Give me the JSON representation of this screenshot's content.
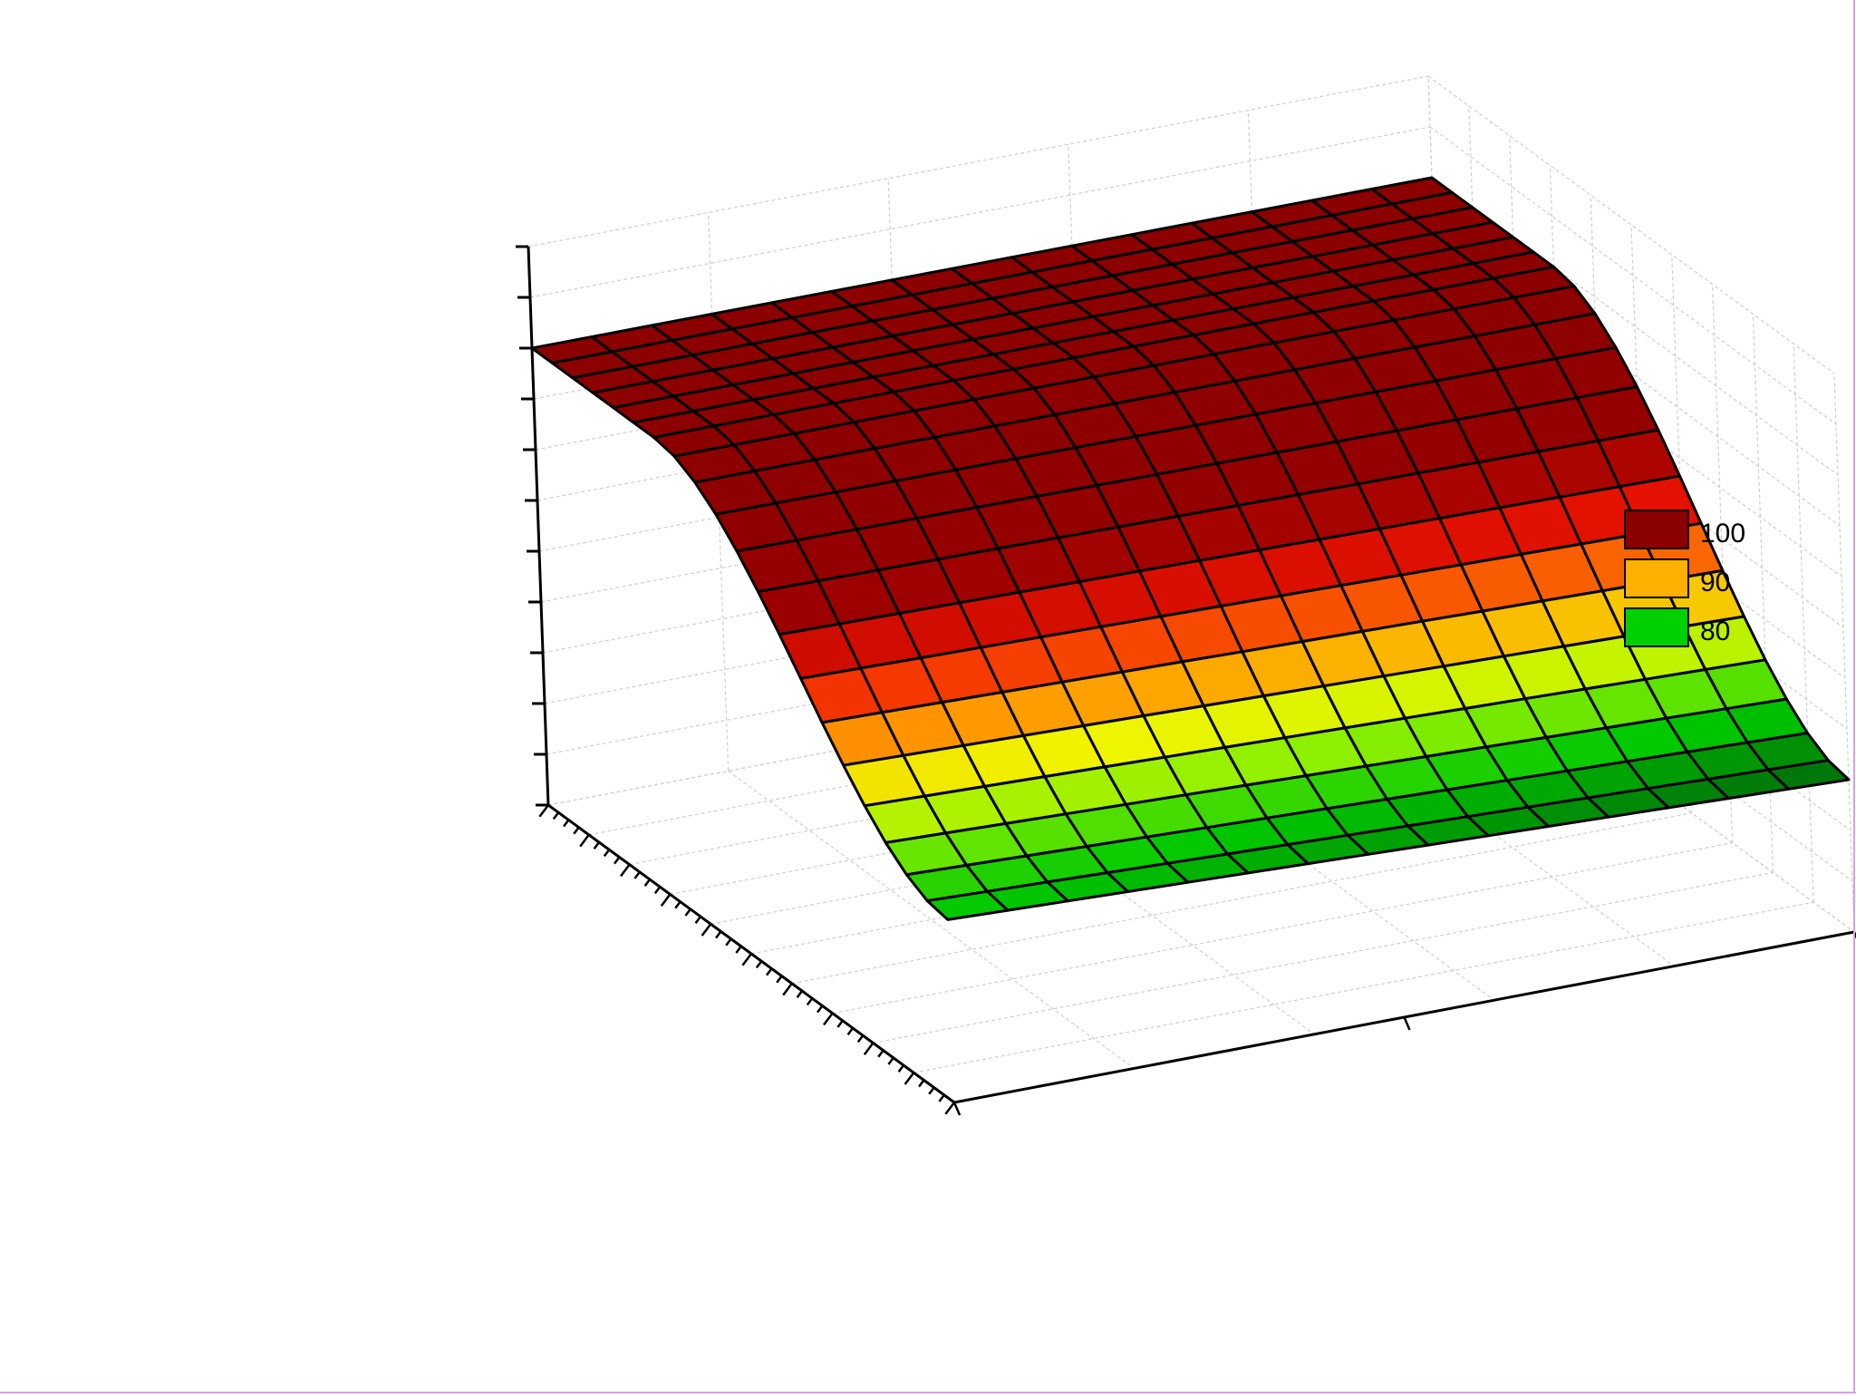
{
  "chart_data": {
    "type": "surface3d",
    "title": "",
    "xlabel": "",
    "ylabel": "",
    "zlabel": "",
    "x_ticks": [
      "",
      "",
      ""
    ],
    "y_ticks": [
      "",
      "",
      "",
      "",
      "",
      "",
      "",
      "",
      "",
      "",
      ""
    ],
    "z_ticks": [
      "",
      "",
      "",
      "",
      "",
      "",
      "",
      "",
      "",
      "",
      "",
      ""
    ],
    "zlim": [
      65,
      120
    ],
    "grid": true,
    "legend_position": "right",
    "legend": [
      {
        "label": "100",
        "color": "#8b0000"
      },
      {
        "label": "90",
        "color": "#ffb000"
      },
      {
        "label": "80",
        "color": "#00d000"
      }
    ],
    "surface": {
      "rows": 20,
      "cols": 15,
      "z_plateau": 110,
      "z_min": 80,
      "shape": "plateau near 110 at low y, falling smoothly to about 80 at high y"
    }
  }
}
